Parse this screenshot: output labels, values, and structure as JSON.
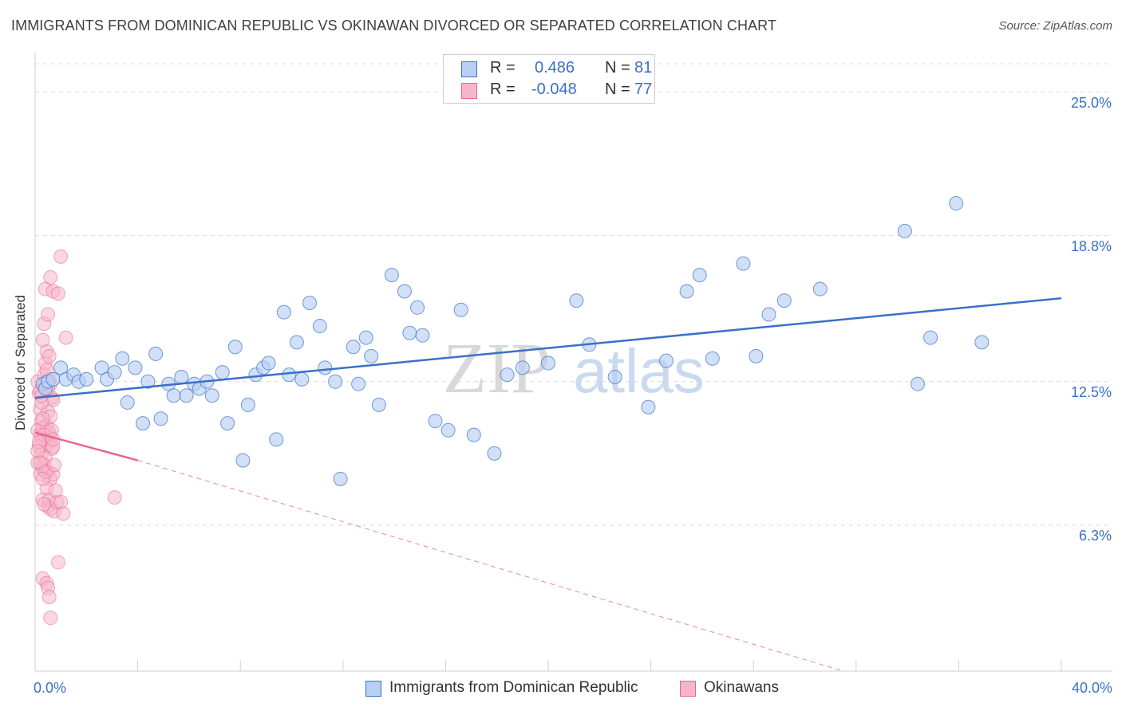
{
  "title": "IMMIGRANTS FROM DOMINICAN REPUBLIC VS OKINAWAN DIVORCED OR SEPARATED CORRELATION CHART",
  "source": "Source: ZipAtlas.com",
  "watermark": {
    "zip": "ZIP",
    "atlas": "atlas"
  },
  "colors": {
    "blue": "#3a70c9",
    "blue_fill": "#b9d0f2",
    "pink": "#e8658f",
    "pink_fill": "#f6b6c9",
    "grid": "#d9d9d9",
    "tick_label": "#3a70c9"
  },
  "legend_top": {
    "rows": [
      {
        "r_label": "R =",
        "r_value": "0.486",
        "n_label": "N =",
        "n_value": "81"
      },
      {
        "r_label": "R =",
        "r_value": "-0.048",
        "n_label": "N =",
        "n_value": "77"
      }
    ]
  },
  "legend_bottom": [
    {
      "label": "Immigrants from Dominican Republic"
    },
    {
      "label": "Okinawans"
    }
  ],
  "chart_data": {
    "type": "scatter",
    "title": "IMMIGRANTS FROM DOMINICAN REPUBLIC VS OKINAWAN DIVORCED OR SEPARATED CORRELATION CHART",
    "xlabel": "",
    "ylabel": "Divorced or Separated",
    "xlim": [
      0,
      40
    ],
    "ylim": [
      0,
      26.5
    ],
    "x_tick_labels": [
      "0.0%",
      "40.0%"
    ],
    "y_ticks": [
      6.3,
      12.5,
      18.8,
      25.0
    ],
    "y_tick_labels": [
      "6.3%",
      "12.5%",
      "18.8%",
      "25.0%"
    ],
    "grid": "horizontal dashed",
    "legend_position": "top-center",
    "series": [
      {
        "name": "Immigrants from Dominican Republic",
        "color": "#3a70c9",
        "trend": {
          "x": [
            0,
            40
          ],
          "y": [
            11.8,
            16.1
          ],
          "style": "solid"
        },
        "points": [
          [
            0.3,
            12.4
          ],
          [
            0.4,
            12.2
          ],
          [
            0.5,
            12.5
          ],
          [
            0.7,
            12.6
          ],
          [
            1.0,
            13.1
          ],
          [
            1.2,
            12.6
          ],
          [
            1.5,
            12.8
          ],
          [
            1.7,
            12.5
          ],
          [
            2.0,
            12.6
          ],
          [
            2.6,
            13.1
          ],
          [
            2.8,
            12.6
          ],
          [
            3.1,
            12.9
          ],
          [
            3.4,
            13.5
          ],
          [
            3.6,
            11.6
          ],
          [
            3.9,
            13.1
          ],
          [
            4.2,
            10.7
          ],
          [
            4.4,
            12.5
          ],
          [
            4.7,
            13.7
          ],
          [
            4.9,
            10.9
          ],
          [
            5.2,
            12.4
          ],
          [
            5.4,
            11.9
          ],
          [
            5.7,
            12.7
          ],
          [
            5.9,
            11.9
          ],
          [
            6.2,
            12.4
          ],
          [
            6.4,
            12.2
          ],
          [
            6.7,
            12.5
          ],
          [
            6.9,
            11.9
          ],
          [
            7.3,
            12.9
          ],
          [
            7.5,
            10.7
          ],
          [
            7.8,
            14.0
          ],
          [
            8.1,
            9.1
          ],
          [
            8.3,
            11.5
          ],
          [
            8.6,
            12.8
          ],
          [
            8.9,
            13.1
          ],
          [
            9.1,
            13.3
          ],
          [
            9.4,
            10.0
          ],
          [
            9.7,
            15.5
          ],
          [
            9.9,
            12.8
          ],
          [
            10.2,
            14.2
          ],
          [
            10.4,
            12.6
          ],
          [
            10.7,
            15.9
          ],
          [
            11.1,
            14.9
          ],
          [
            11.3,
            13.1
          ],
          [
            11.7,
            12.5
          ],
          [
            11.9,
            8.3
          ],
          [
            12.4,
            14.0
          ],
          [
            12.6,
            12.4
          ],
          [
            12.9,
            14.4
          ],
          [
            13.1,
            13.6
          ],
          [
            13.4,
            11.5
          ],
          [
            13.9,
            17.1
          ],
          [
            14.4,
            16.4
          ],
          [
            14.6,
            14.6
          ],
          [
            14.9,
            15.7
          ],
          [
            15.1,
            14.5
          ],
          [
            15.6,
            10.8
          ],
          [
            16.1,
            10.4
          ],
          [
            16.6,
            15.6
          ],
          [
            17.1,
            10.2
          ],
          [
            17.9,
            9.4
          ],
          [
            18.4,
            12.8
          ],
          [
            19.0,
            13.1
          ],
          [
            20.0,
            13.3
          ],
          [
            21.1,
            16.0
          ],
          [
            21.6,
            14.1
          ],
          [
            22.6,
            12.7
          ],
          [
            23.9,
            11.4
          ],
          [
            24.6,
            13.4
          ],
          [
            25.4,
            16.4
          ],
          [
            25.9,
            17.1
          ],
          [
            26.4,
            13.5
          ],
          [
            27.6,
            17.6
          ],
          [
            28.1,
            13.6
          ],
          [
            28.6,
            15.4
          ],
          [
            29.2,
            16.0
          ],
          [
            30.6,
            16.5
          ],
          [
            33.9,
            19.0
          ],
          [
            34.4,
            12.4
          ],
          [
            34.9,
            14.4
          ],
          [
            35.9,
            20.2
          ],
          [
            36.9,
            14.2
          ]
        ]
      },
      {
        "name": "Okinawans",
        "color": "#e8658f",
        "trend": {
          "x": [
            0,
            4
          ],
          "y": [
            10.3,
            9.1
          ],
          "extended_to": [
            31.5,
            0.0
          ],
          "style": "solid then dashed"
        },
        "points": [
          [
            0.1,
            12.5
          ],
          [
            0.15,
            12.0
          ],
          [
            0.2,
            11.3
          ],
          [
            0.25,
            10.8
          ],
          [
            0.1,
            10.4
          ],
          [
            0.2,
            10.2
          ],
          [
            0.3,
            10.0
          ],
          [
            0.15,
            9.7
          ],
          [
            0.25,
            9.4
          ],
          [
            0.1,
            9.0
          ],
          [
            0.3,
            8.7
          ],
          [
            0.2,
            8.5
          ],
          [
            0.35,
            12.8
          ],
          [
            0.4,
            13.3
          ],
          [
            0.45,
            13.8
          ],
          [
            0.3,
            14.3
          ],
          [
            0.35,
            15.0
          ],
          [
            0.4,
            16.5
          ],
          [
            0.5,
            15.4
          ],
          [
            0.6,
            17.0
          ],
          [
            0.7,
            16.4
          ],
          [
            0.9,
            16.3
          ],
          [
            1.0,
            17.9
          ],
          [
            0.55,
            13.6
          ],
          [
            0.6,
            12.4
          ],
          [
            0.65,
            11.8
          ],
          [
            0.7,
            11.7
          ],
          [
            0.5,
            11.2
          ],
          [
            0.45,
            10.6
          ],
          [
            0.55,
            10.3
          ],
          [
            0.6,
            10.1
          ],
          [
            0.5,
            9.8
          ],
          [
            0.65,
            9.6
          ],
          [
            0.4,
            9.2
          ],
          [
            0.35,
            8.9
          ],
          [
            0.5,
            8.6
          ],
          [
            0.6,
            8.3
          ],
          [
            0.7,
            8.5
          ],
          [
            0.45,
            7.9
          ],
          [
            0.3,
            7.4
          ],
          [
            0.5,
            7.1
          ],
          [
            0.55,
            7.4
          ],
          [
            0.6,
            7.0
          ],
          [
            0.75,
            6.9
          ],
          [
            0.85,
            7.3
          ],
          [
            1.0,
            7.3
          ],
          [
            1.1,
            6.8
          ],
          [
            1.2,
            14.4
          ],
          [
            0.3,
            4.0
          ],
          [
            0.45,
            3.8
          ],
          [
            0.5,
            3.6
          ],
          [
            0.55,
            3.2
          ],
          [
            0.6,
            2.3
          ],
          [
            0.9,
            4.7
          ],
          [
            0.2,
            12.1
          ],
          [
            0.25,
            11.6
          ],
          [
            0.3,
            10.5
          ],
          [
            0.35,
            10.2
          ],
          [
            0.15,
            9.9
          ],
          [
            0.1,
            9.5
          ],
          [
            0.2,
            9.0
          ],
          [
            0.4,
            8.6
          ],
          [
            0.3,
            8.3
          ],
          [
            0.25,
            11.9
          ],
          [
            0.4,
            12.4
          ],
          [
            0.5,
            12.2
          ],
          [
            0.55,
            12.6
          ],
          [
            0.6,
            11.0
          ],
          [
            0.65,
            10.4
          ],
          [
            0.7,
            9.7
          ],
          [
            0.75,
            8.9
          ],
          [
            0.8,
            7.8
          ],
          [
            0.35,
            7.2
          ],
          [
            0.45,
            13.0
          ],
          [
            0.3,
            10.9
          ],
          [
            3.1,
            7.5
          ],
          [
            0.7,
            10.0
          ]
        ]
      }
    ]
  }
}
